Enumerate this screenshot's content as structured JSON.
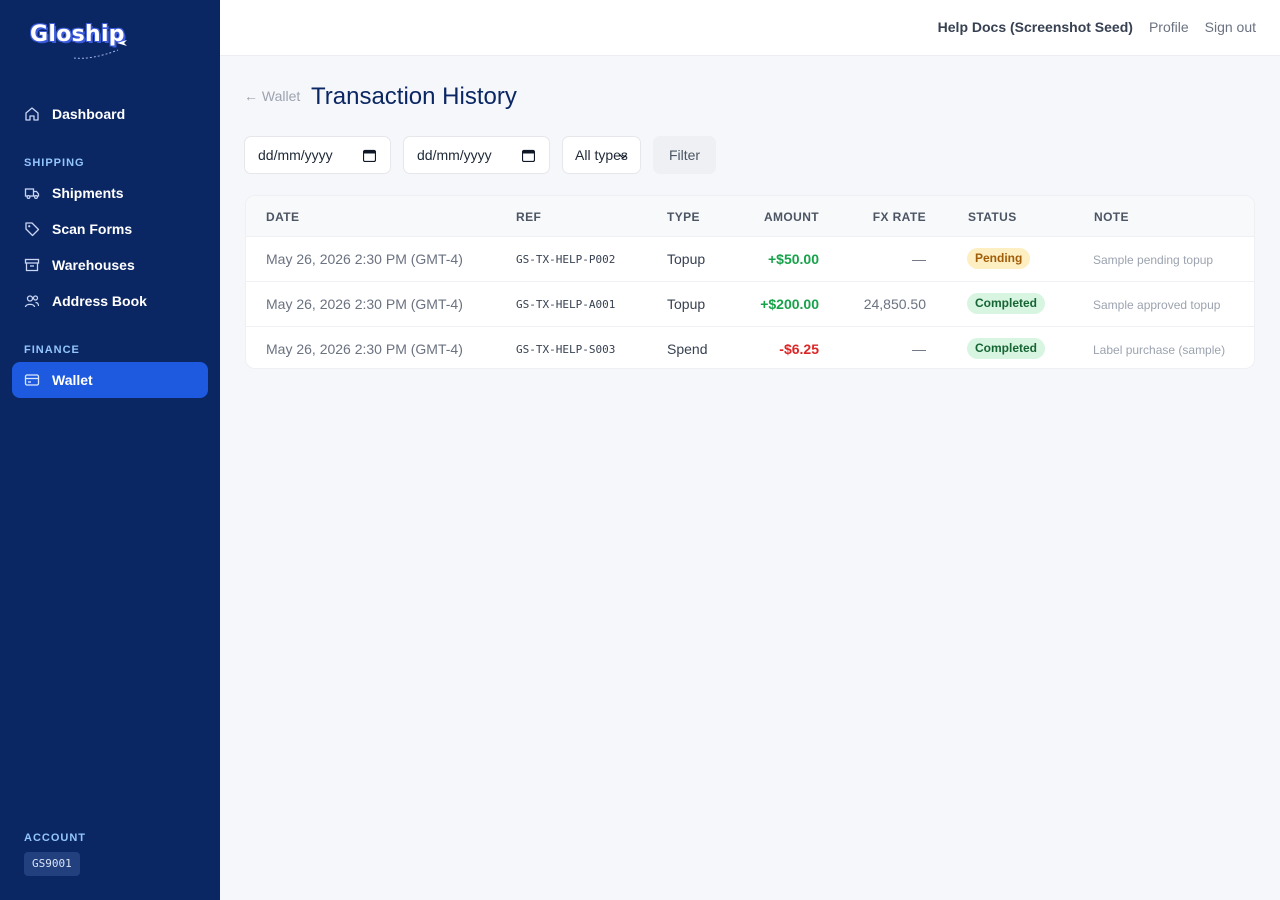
{
  "sidebar": {
    "logo_text": "Gloship",
    "items": {
      "dashboard": "Dashboard",
      "shipments": "Shipments",
      "scan_forms": "Scan Forms",
      "warehouses": "Warehouses",
      "address_book": "Address Book",
      "wallet": "Wallet"
    },
    "sections": {
      "shipping": "SHIPPING",
      "finance": "FINANCE",
      "account": "ACCOUNT"
    },
    "account_id": "GS9001"
  },
  "topbar": {
    "user_name": "Help Docs (Screenshot Seed)",
    "profile": "Profile",
    "sign_out": "Sign out"
  },
  "page": {
    "back_link": "← Wallet",
    "title": "Transaction History"
  },
  "filters": {
    "date_from_placeholder": "dd/mm/yyyy",
    "date_to_placeholder": "dd/mm/yyyy",
    "type_selected": "All types",
    "filter_button": "Filter"
  },
  "table": {
    "headers": {
      "date": "DATE",
      "ref": "REF",
      "type": "TYPE",
      "amount": "AMOUNT",
      "fx_rate": "FX RATE",
      "status": "STATUS",
      "note": "NOTE"
    },
    "rows": [
      {
        "date": "May 26, 2026 2:30 PM (GMT-4)",
        "ref": "GS-TX-HELP-P002",
        "type": "Topup",
        "amount": "+$50.00",
        "fx_rate": "—",
        "status": "Pending",
        "note": "Sample pending topup"
      },
      {
        "date": "May 26, 2026 2:30 PM (GMT-4)",
        "ref": "GS-TX-HELP-A001",
        "type": "Topup",
        "amount": "+$200.00",
        "fx_rate": "24,850.50",
        "status": "Completed",
        "note": "Sample approved topup"
      },
      {
        "date": "May 26, 2026 2:30 PM (GMT-4)",
        "ref": "GS-TX-HELP-S003",
        "type": "Spend",
        "amount": "-$6.25",
        "fx_rate": "—",
        "status": "Completed",
        "note": "Label purchase (sample)"
      }
    ]
  },
  "colors": {
    "sidebar_bg": "#0b2763",
    "active_nav": "#1d5ae0",
    "positive": "#16a34a",
    "negative": "#dc2626",
    "pending_badge": "#fdefc2",
    "completed_badge": "#d8f5e1"
  },
  "icons": {
    "dashboard": "home-icon",
    "shipments": "truck-icon",
    "scan_forms": "tag-icon",
    "warehouses": "archive-box-icon",
    "address_book": "users-icon",
    "wallet": "credit-card-icon"
  }
}
